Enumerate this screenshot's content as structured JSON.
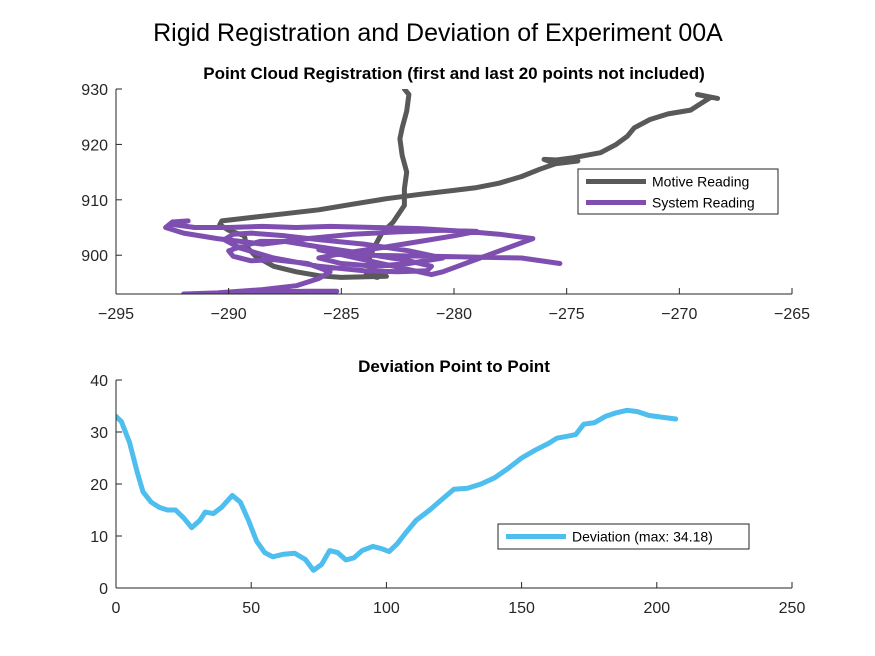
{
  "figure": {
    "title": "Rigid Registration and Deviation of Experiment 00A"
  },
  "chart_data": [
    {
      "type": "line",
      "title": "Point Cloud Registration (first and last 20 points not included)",
      "xlabel": "",
      "ylabel": "",
      "xlim": [
        -295,
        -265
      ],
      "ylim": [
        893,
        930
      ],
      "xticks": [
        -295,
        -290,
        -285,
        -280,
        -275,
        -270,
        -265
      ],
      "yticks": [
        900,
        910,
        920,
        930
      ],
      "grid": false,
      "legend_position": "right",
      "series": [
        {
          "name": "Motive Reading",
          "color": "#595959",
          "points": [
            [
              -282.2,
              930
            ],
            [
              -282.0,
              929
            ],
            [
              -282.1,
              926
            ],
            [
              -282.3,
              923
            ],
            [
              -282.4,
              921
            ],
            [
              -282.3,
              918
            ],
            [
              -282.1,
              915
            ],
            [
              -282.2,
              912
            ],
            [
              -282.2,
              909
            ],
            [
              -282.7,
              906
            ],
            [
              -283.2,
              904
            ],
            [
              -283.6,
              901
            ],
            [
              -283.8,
              899
            ],
            [
              -283.7,
              897
            ],
            [
              -283.4,
              896
            ],
            [
              -283.9,
              896.5
            ],
            [
              -283.0,
              896.2
            ],
            [
              -285.0,
              896.0
            ],
            [
              -286.0,
              896.3
            ],
            [
              -287.0,
              897.0
            ],
            [
              -288.0,
              898.0
            ],
            [
              -288.8,
              899.8
            ],
            [
              -289.2,
              901.5
            ],
            [
              -289.3,
              903.5
            ],
            [
              -290.0,
              904.5
            ],
            [
              -290.4,
              905.5
            ],
            [
              -290.3,
              906.2
            ],
            [
              -289.0,
              906.8
            ],
            [
              -287.5,
              907.5
            ],
            [
              -286.0,
              908.2
            ],
            [
              -284.5,
              909.2
            ],
            [
              -283.0,
              910.2
            ],
            [
              -281.5,
              911.0
            ],
            [
              -280.0,
              911.7
            ],
            [
              -279.0,
              912.2
            ],
            [
              -278.0,
              913.0
            ],
            [
              -277.0,
              914.2
            ],
            [
              -276.2,
              915.5
            ],
            [
              -275.5,
              916.5
            ],
            [
              -274.5,
              917.0
            ],
            [
              -276.0,
              917.3
            ],
            [
              -275.8,
              917.0
            ],
            [
              -274.7,
              917.6
            ],
            [
              -273.5,
              918.5
            ],
            [
              -272.8,
              920.0
            ],
            [
              -272.3,
              921.5
            ],
            [
              -272.0,
              923.0
            ],
            [
              -271.3,
              924.5
            ],
            [
              -270.5,
              925.5
            ],
            [
              -269.5,
              926.2
            ],
            [
              -269.0,
              927.5
            ],
            [
              -268.6,
              928.5
            ],
            [
              -269.2,
              929.0
            ],
            [
              -268.3,
              928.3
            ]
          ]
        },
        {
          "name": "System Reading",
          "color": "#7E4FB0",
          "points": [
            [
              -285.2,
              893.5
            ],
            [
              -286.5,
              893.5
            ],
            [
              -288.0,
              893.4
            ],
            [
              -290.0,
              893.2
            ],
            [
              -292.0,
              893.0
            ],
            [
              -290.5,
              893.2
            ],
            [
              -288.5,
              893.8
            ],
            [
              -287.0,
              894.5
            ],
            [
              -286.0,
              895.8
            ],
            [
              -285.5,
              897.0
            ],
            [
              -286.5,
              898.5
            ],
            [
              -288.0,
              899.2
            ],
            [
              -289.0,
              899.0
            ],
            [
              -289.8,
              899.8
            ],
            [
              -290.0,
              900.8
            ],
            [
              -289.5,
              901.5
            ],
            [
              -288.6,
              902.5
            ],
            [
              -287.5,
              902.5
            ],
            [
              -286.0,
              901.5
            ],
            [
              -284.0,
              900.3
            ],
            [
              -282.0,
              899.0
            ],
            [
              -281.0,
              898.0
            ],
            [
              -281.2,
              897.2
            ],
            [
              -282.5,
              897.0
            ],
            [
              -284.0,
              897.2
            ],
            [
              -286.0,
              898.0
            ],
            [
              -288.0,
              899.5
            ],
            [
              -289.5,
              901.3
            ],
            [
              -290.2,
              902.8
            ],
            [
              -289.8,
              903.8
            ],
            [
              -289.0,
              904.0
            ],
            [
              -287.5,
              903.5
            ],
            [
              -286.0,
              902.8
            ],
            [
              -284.0,
              902.0
            ],
            [
              -282.0,
              900.8
            ],
            [
              -280.5,
              899.5
            ],
            [
              -282.0,
              898.5
            ],
            [
              -283.5,
              898.0
            ],
            [
              -285.0,
              898.5
            ],
            [
              -286.0,
              899.5
            ],
            [
              -285.0,
              900.3
            ],
            [
              -283.0,
              901.5
            ],
            [
              -281.5,
              902.5
            ],
            [
              -280.0,
              903.5
            ],
            [
              -279.0,
              904.3
            ],
            [
              -280.5,
              904.5
            ],
            [
              -282.5,
              904.2
            ],
            [
              -284.5,
              903.8
            ],
            [
              -286.5,
              903.0
            ],
            [
              -288.5,
              902.0
            ],
            [
              -290.5,
              903.0
            ],
            [
              -292.0,
              904.0
            ],
            [
              -292.8,
              905.0
            ],
            [
              -292.5,
              906.0
            ],
            [
              -291.8,
              906.2
            ],
            [
              -292.6,
              905.6
            ],
            [
              -291.5,
              905.0
            ],
            [
              -290.0,
              905.0
            ],
            [
              -288.5,
              905.2
            ],
            [
              -287.0,
              905.0
            ],
            [
              -285.5,
              905.2
            ],
            [
              -283.5,
              905.0
            ],
            [
              -281.5,
              904.8
            ],
            [
              -279.5,
              904.3
            ],
            [
              -278.0,
              903.8
            ],
            [
              -276.5,
              903.0
            ],
            [
              -280.5,
              897.0
            ],
            [
              -281.0,
              896.5
            ],
            [
              -286.0,
              901.0
            ],
            [
              -284.0,
              900.0
            ],
            [
              -281.0,
              899.8
            ],
            [
              -278.5,
              899.6
            ],
            [
              -277.0,
              899.5
            ],
            [
              -275.3,
              898.5
            ]
          ]
        }
      ]
    },
    {
      "type": "line",
      "title": "Deviation Point to Point",
      "xlabel": "",
      "ylabel": "",
      "xlim": [
        0,
        250
      ],
      "ylim": [
        0,
        40
      ],
      "xticks": [
        0,
        50,
        100,
        150,
        200,
        250
      ],
      "yticks": [
        0,
        10,
        20,
        30,
        40
      ],
      "grid": false,
      "legend_position": "right",
      "series": [
        {
          "name": "Deviation (max: 34.18)",
          "color": "#4DBEEE",
          "points": [
            [
              0,
              33
            ],
            [
              2,
              32
            ],
            [
              5,
              28
            ],
            [
              8,
              22
            ],
            [
              10,
              18.5
            ],
            [
              13,
              16.5
            ],
            [
              16,
              15.5
            ],
            [
              19,
              15
            ],
            [
              22,
              15
            ],
            [
              25,
              13.5
            ],
            [
              28,
              11.6
            ],
            [
              31,
              13
            ],
            [
              33,
              14.6
            ],
            [
              36,
              14.3
            ],
            [
              39,
              15.5
            ],
            [
              43,
              17.8
            ],
            [
              46,
              16.5
            ],
            [
              49,
              13
            ],
            [
              52,
              9
            ],
            [
              55,
              6.8
            ],
            [
              58,
              6
            ],
            [
              62,
              6.5
            ],
            [
              66,
              6.7
            ],
            [
              70,
              5.5
            ],
            [
              73,
              3.4
            ],
            [
              76,
              4.5
            ],
            [
              79,
              7.2
            ],
            [
              82,
              6.8
            ],
            [
              85,
              5.4
            ],
            [
              88,
              5.8
            ],
            [
              91,
              7.2
            ],
            [
              95,
              8
            ],
            [
              98,
              7.6
            ],
            [
              101,
              7
            ],
            [
              104,
              8.5
            ],
            [
              107,
              10.5
            ],
            [
              111,
              13
            ],
            [
              116,
              15
            ],
            [
              120,
              16.8
            ],
            [
              125,
              19
            ],
            [
              130,
              19.2
            ],
            [
              135,
              20
            ],
            [
              140,
              21.2
            ],
            [
              145,
              23
            ],
            [
              150,
              25
            ],
            [
              155,
              26.5
            ],
            [
              160,
              27.8
            ],
            [
              163,
              28.8
            ],
            [
              167,
              29.2
            ],
            [
              170,
              29.5
            ],
            [
              173,
              31.5
            ],
            [
              177,
              31.8
            ],
            [
              181,
              33
            ],
            [
              185,
              33.7
            ],
            [
              189,
              34.18
            ],
            [
              193,
              33.9
            ],
            [
              197,
              33.2
            ],
            [
              201,
              32.9
            ],
            [
              207,
              32.5
            ]
          ]
        }
      ]
    }
  ]
}
